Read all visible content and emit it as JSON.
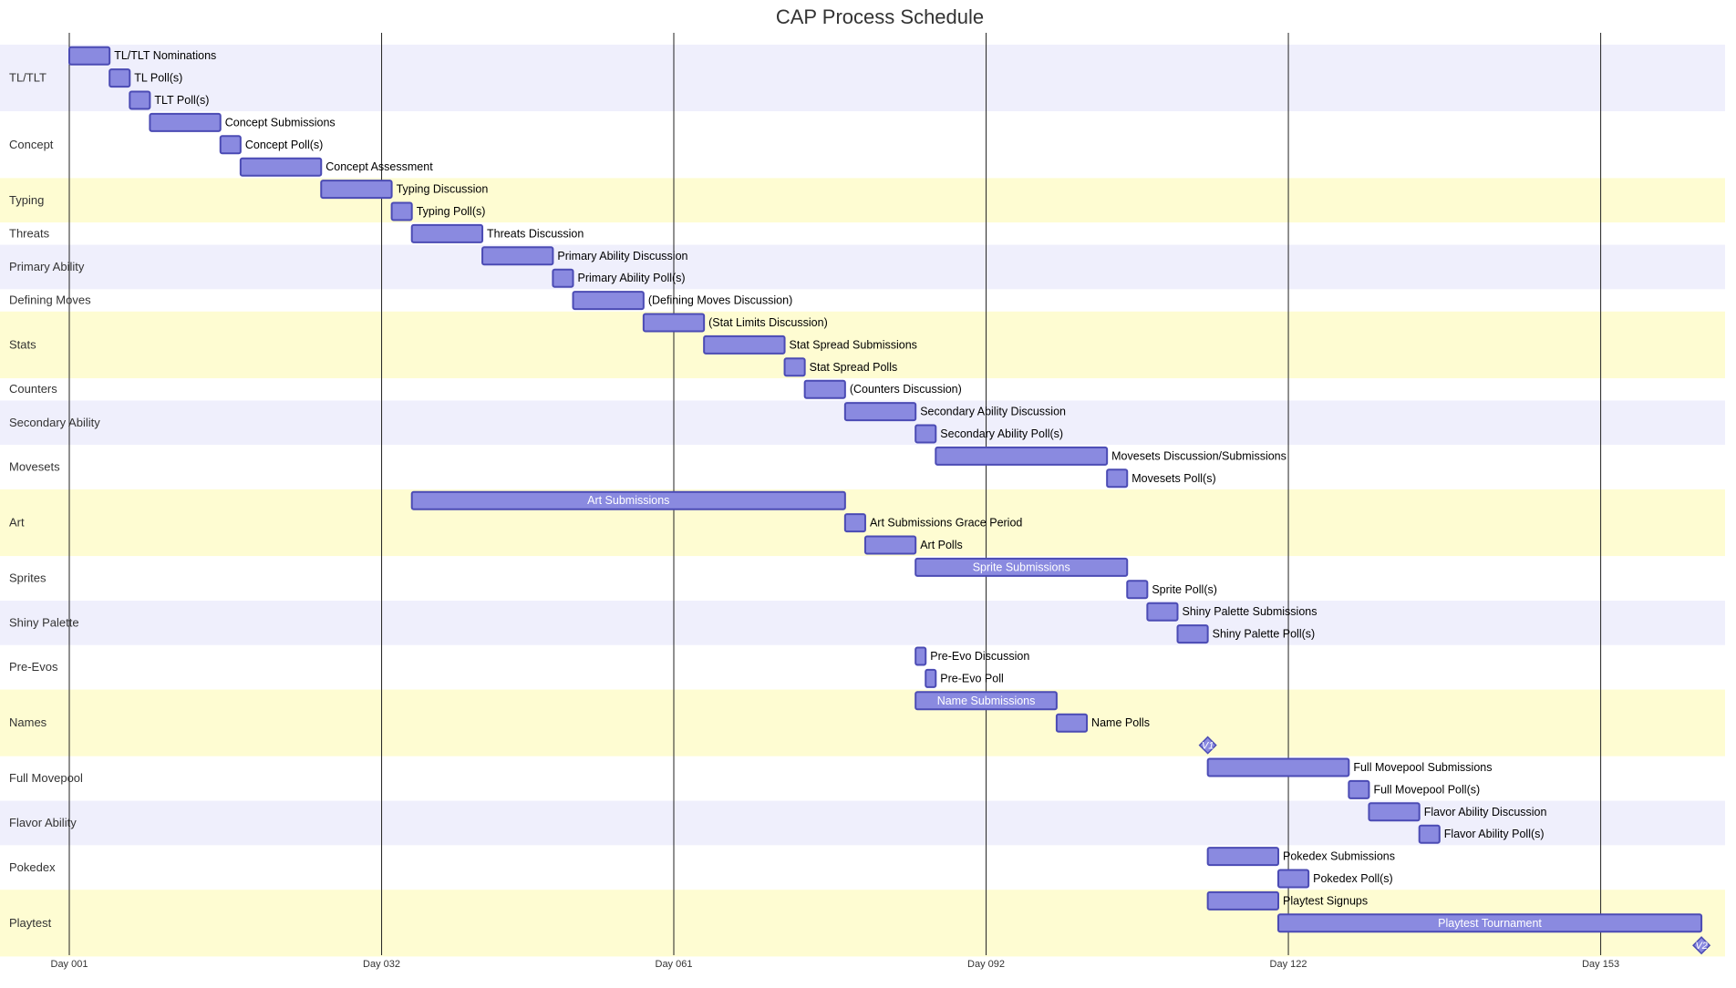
{
  "colors": {
    "band_a": "#efeffc",
    "band_b": "#ffffff",
    "band_c": "#fefcd2",
    "bar_fill": "#8a8ae0",
    "bar_stroke": "#4b4bb4",
    "grid": "#222222",
    "label_inside": "#ffffff",
    "label_outside": "#000000"
  },
  "chart_data": {
    "type": "gantt",
    "title": "CAP Process Schedule",
    "x_unit": "day",
    "x_domain": [
      1,
      169
    ],
    "ticks": [
      {
        "day": 1,
        "label": "Day 001"
      },
      {
        "day": 32,
        "label": "Day 032"
      },
      {
        "day": 61,
        "label": "Day 061"
      },
      {
        "day": 92,
        "label": "Day 092"
      },
      {
        "day": 122,
        "label": "Day 122"
      },
      {
        "day": 153,
        "label": "Day 153"
      }
    ],
    "sections": [
      {
        "name": "TL/TLT",
        "band": "a",
        "tasks": [
          {
            "label": "TL/TLT Nominations",
            "start": 1,
            "end": 5
          },
          {
            "label": "TL Poll(s)",
            "start": 5,
            "end": 7
          },
          {
            "label": "TLT Poll(s)",
            "start": 7,
            "end": 9
          }
        ]
      },
      {
        "name": "Concept",
        "band": "b",
        "tasks": [
          {
            "label": "Concept Submissions",
            "start": 9,
            "end": 16
          },
          {
            "label": "Concept Poll(s)",
            "start": 16,
            "end": 18
          },
          {
            "label": "Concept Assessment",
            "start": 18,
            "end": 26
          }
        ]
      },
      {
        "name": "Typing",
        "band": "c",
        "tasks": [
          {
            "label": "Typing Discussion",
            "start": 26,
            "end": 33
          },
          {
            "label": "Typing Poll(s)",
            "start": 33,
            "end": 35
          }
        ]
      },
      {
        "name": "Threats",
        "band": "b",
        "tasks": [
          {
            "label": "Threats Discussion",
            "start": 35,
            "end": 42
          }
        ]
      },
      {
        "name": "Primary Ability",
        "band": "a",
        "tasks": [
          {
            "label": "Primary Ability Discussion",
            "start": 42,
            "end": 49
          },
          {
            "label": "Primary Ability Poll(s)",
            "start": 49,
            "end": 51
          }
        ]
      },
      {
        "name": "Defining Moves",
        "band": "b",
        "tasks": [
          {
            "label": "(Defining Moves Discussion)",
            "start": 51,
            "end": 58
          }
        ]
      },
      {
        "name": "Stats",
        "band": "c",
        "tasks": [
          {
            "label": "(Stat Limits Discussion)",
            "start": 58,
            "end": 64
          },
          {
            "label": "Stat Spread Submissions",
            "start": 64,
            "end": 72
          },
          {
            "label": "Stat Spread Polls",
            "start": 72,
            "end": 74
          }
        ]
      },
      {
        "name": "Counters",
        "band": "b",
        "tasks": [
          {
            "label": "(Counters Discussion)",
            "start": 74,
            "end": 78
          }
        ]
      },
      {
        "name": "Secondary Ability",
        "band": "a",
        "tasks": [
          {
            "label": "Secondary Ability Discussion",
            "start": 78,
            "end": 85
          },
          {
            "label": "Secondary Ability Poll(s)",
            "start": 85,
            "end": 87
          }
        ]
      },
      {
        "name": "Movesets",
        "band": "b",
        "tasks": [
          {
            "label": "Movesets Discussion/Submissions",
            "start": 87,
            "end": 104
          },
          {
            "label": "Movesets Poll(s)",
            "start": 104,
            "end": 106
          }
        ]
      },
      {
        "name": "Art",
        "band": "c",
        "tasks": [
          {
            "label": "Art Submissions",
            "start": 35,
            "end": 78
          },
          {
            "label": "Art Submissions Grace Period",
            "start": 78,
            "end": 80
          },
          {
            "label": "Art Polls",
            "start": 80,
            "end": 85
          }
        ]
      },
      {
        "name": "Sprites",
        "band": "b",
        "tasks": [
          {
            "label": "Sprite Submissions",
            "start": 85,
            "end": 106
          },
          {
            "label": "Sprite Poll(s)",
            "start": 106,
            "end": 108
          }
        ]
      },
      {
        "name": "Shiny Palette",
        "band": "a",
        "tasks": [
          {
            "label": "Shiny Palette Submissions",
            "start": 108,
            "end": 111
          },
          {
            "label": "Shiny Palette Poll(s)",
            "start": 111,
            "end": 114
          }
        ]
      },
      {
        "name": "Pre-Evos",
        "band": "b",
        "tasks": [
          {
            "label": "Pre-Evo Discussion",
            "start": 85,
            "end": 86
          },
          {
            "label": "Pre-Evo Poll",
            "start": 86,
            "end": 87
          }
        ]
      },
      {
        "name": "Names",
        "band": "c",
        "tasks": [
          {
            "label": "Name Submissions",
            "start": 85,
            "end": 99
          },
          {
            "label": "Name Polls",
            "start": 99,
            "end": 102
          },
          {
            "label": "V1",
            "start": 114,
            "end": 114,
            "milestone": true
          }
        ]
      },
      {
        "name": "Full Movepool",
        "band": "b",
        "tasks": [
          {
            "label": "Full Movepool Submissions",
            "start": 114,
            "end": 128
          },
          {
            "label": "Full Movepool Poll(s)",
            "start": 128,
            "end": 130
          }
        ]
      },
      {
        "name": "Flavor Ability",
        "band": "a",
        "tasks": [
          {
            "label": "Flavor Ability Discussion",
            "start": 130,
            "end": 135
          },
          {
            "label": "Flavor Ability Poll(s)",
            "start": 135,
            "end": 137
          }
        ]
      },
      {
        "name": "Pokedex",
        "band": "b",
        "tasks": [
          {
            "label": "Pokedex Submissions",
            "start": 114,
            "end": 121
          },
          {
            "label": "Pokedex Poll(s)",
            "start": 121,
            "end": 124
          }
        ]
      },
      {
        "name": "Playtest",
        "band": "c",
        "tasks": [
          {
            "label": "Playtest Signups",
            "start": 114,
            "end": 121
          },
          {
            "label": "Playtest Tournament",
            "start": 121,
            "end": 163
          },
          {
            "label": "V2",
            "start": 163,
            "end": 163,
            "milestone": true
          }
        ]
      }
    ]
  }
}
